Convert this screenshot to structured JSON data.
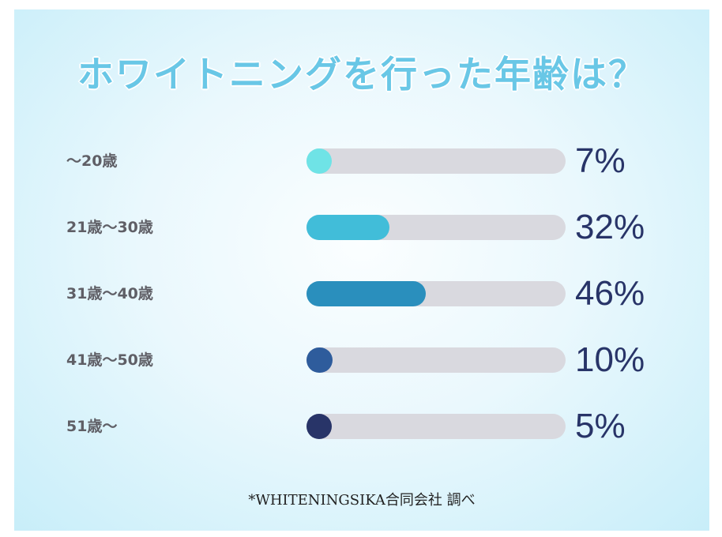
{
  "title": "ホワイトニングを行った年齢は？",
  "source": "*WHITENINGSIKA合同会社 調べ",
  "chart_data": {
    "type": "bar",
    "orientation": "horizontal",
    "categories": [
      "〜20歳",
      "21歳〜30歳",
      "31歳〜40歳",
      "41歳〜50歳",
      "51歳〜"
    ],
    "values": [
      7,
      32,
      46,
      10,
      5
    ],
    "labels": [
      "7%",
      "32%",
      "46%",
      "10%",
      "5%"
    ],
    "colors": [
      "#6fe3e6",
      "#41bdd9",
      "#2a8fbd",
      "#2e5c9c",
      "#283468"
    ],
    "xlim": [
      0,
      100
    ],
    "unit": "%",
    "grid": false,
    "legend": "none"
  }
}
